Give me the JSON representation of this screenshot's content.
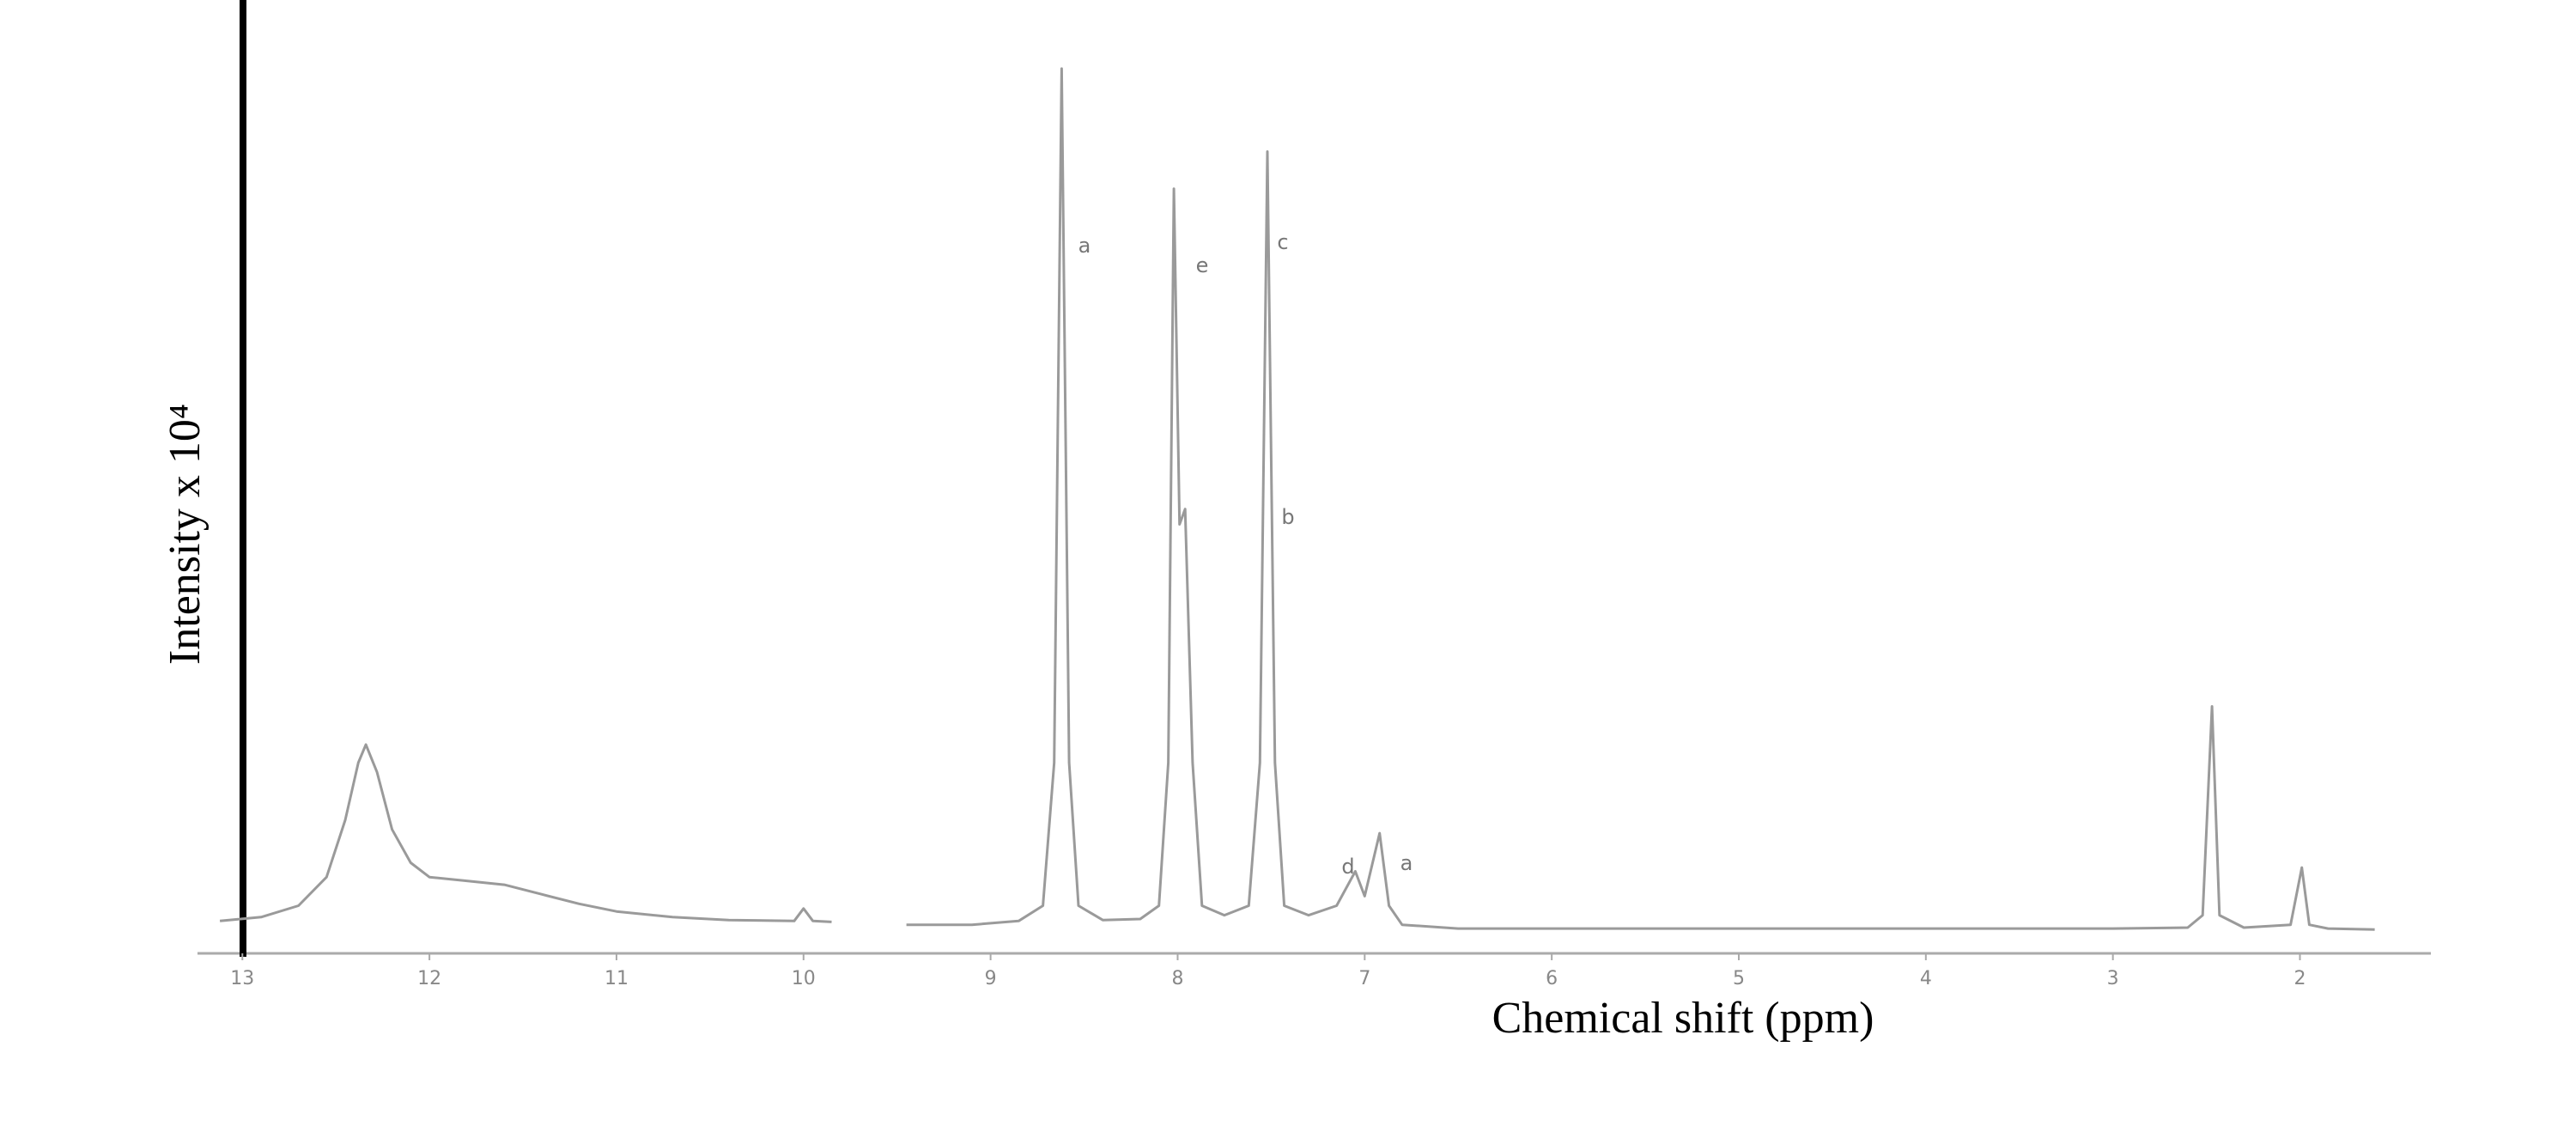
{
  "chart_data": {
    "type": "line",
    "x_label": "Chemical shift (ppm)",
    "y_label": "Intensity x 10⁴",
    "xlim": [
      13.24,
      1.3
    ],
    "xticks": [
      13,
      12,
      11,
      10,
      9,
      8,
      7,
      6,
      5,
      4,
      3,
      2
    ],
    "ylim": [
      0,
      100
    ],
    "x": [
      13.12,
      12.9,
      12.7,
      12.55,
      12.45,
      12.38,
      12.34,
      12.28,
      12.2,
      12.1,
      12.0,
      11.8,
      11.6,
      11.4,
      11.2,
      11.0,
      10.7,
      10.4,
      10.05,
      10.0,
      9.95,
      9.85,
      9.7,
      9.45,
      9.1,
      8.85,
      8.72,
      8.66,
      8.62,
      8.58,
      8.53,
      8.4,
      8.2,
      8.1,
      8.05,
      8.02,
      7.99,
      7.96,
      7.92,
      7.87,
      7.75,
      7.62,
      7.56,
      7.52,
      7.48,
      7.43,
      7.3,
      7.15,
      7.05,
      7.0,
      6.92,
      6.87,
      6.8,
      6.5,
      5,
      3,
      2.6,
      2.52,
      2.47,
      2.43,
      2.3,
      2.05,
      1.99,
      1.95,
      1.85,
      1.6
    ],
    "series": [
      {
        "color": "#9a9a9a",
        "values": [
          3.4,
          3.8,
          5,
          8,
          14,
          20,
          21.9,
          19,
          13,
          9.5,
          8,
          7.6,
          7.2,
          6.2,
          5.2,
          4.4,
          3.8,
          3.5,
          3.4,
          4.7,
          3.4,
          3.3,
          null,
          3.0,
          3.0,
          3.4,
          5,
          20,
          92.8,
          20,
          5,
          3.5,
          3.6,
          5,
          20,
          80.2,
          45,
          46.6,
          20,
          5,
          4,
          5,
          20,
          84.1,
          20,
          5,
          4,
          5,
          8.6,
          6,
          12.6,
          5,
          3,
          2.6,
          2.6,
          2.6,
          2.7,
          4,
          25.9,
          4,
          2.7,
          3,
          9,
          3,
          2.6,
          2.5
        ]
      }
    ],
    "annotations": [
      "a",
      "e",
      "c",
      "b",
      "d",
      "a"
    ]
  }
}
